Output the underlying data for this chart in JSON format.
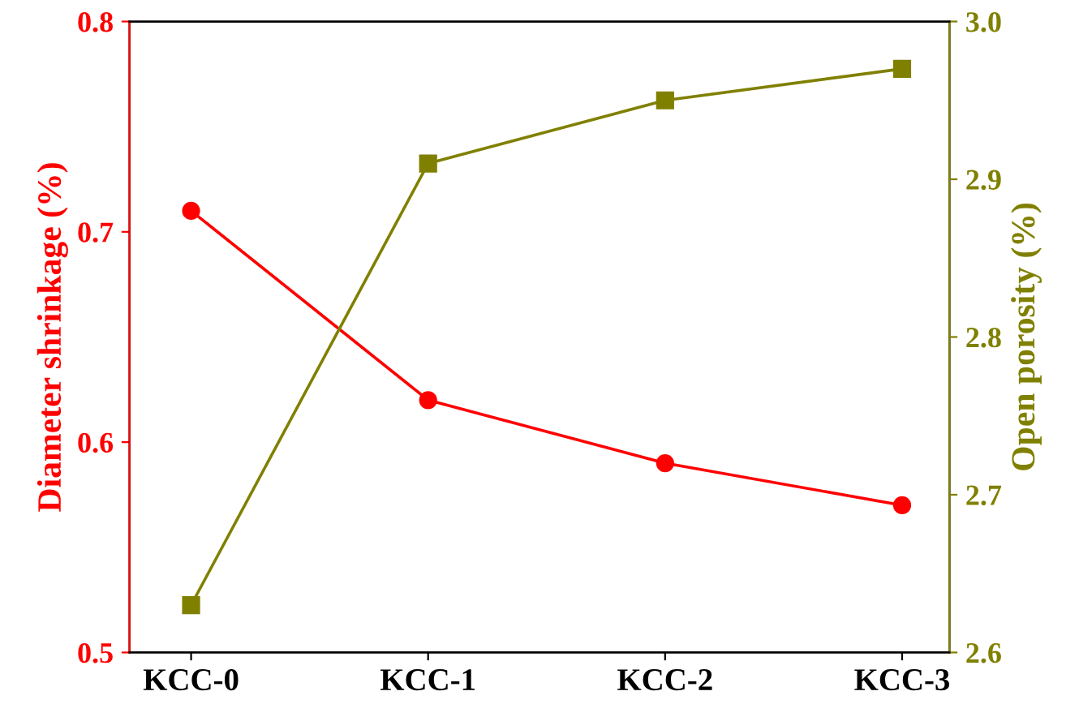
{
  "chart_data": {
    "type": "line",
    "ylabel": "Diameter shrinkage (%)",
    "y2label": "Open porosity (%)",
    "categories": [
      "KCC-0",
      "KCC-1",
      "KCC-2",
      "KCC-3"
    ],
    "series": [
      {
        "color": "#ff0000",
        "values": [
          0.71,
          0.62,
          0.59,
          0.57
        ],
        "marker": "circle"
      },
      {
        "color": "#808000",
        "values": [
          2.63,
          2.91,
          2.95,
          2.97
        ],
        "marker": "square",
        "axis": "y2"
      }
    ],
    "ylim": [
      0.5,
      0.8
    ],
    "yticks": [
      0.5,
      0.6,
      0.7,
      0.8
    ],
    "y2lim": [
      2.6,
      3.0
    ],
    "y2ticks": [
      2.6,
      2.7,
      2.8,
      2.9,
      {
        "value": 3,
        "label": "3.0"
      }
    ],
    "grid": false,
    "legend": false
  }
}
